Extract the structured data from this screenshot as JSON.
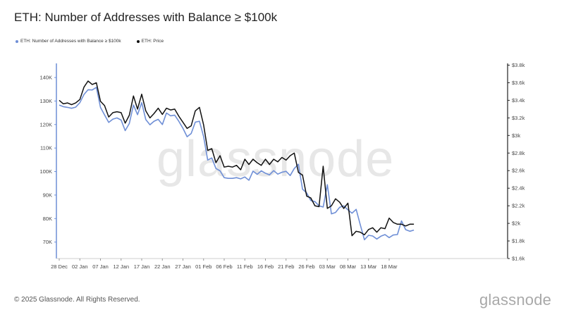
{
  "chart_data": {
    "type": "line",
    "title": "ETH: Number of Addresses with Balance ≥ $100k",
    "legend_placement": "top-left",
    "grid": false,
    "x_tick_labels": [
      "28 Dec",
      "02 Jan",
      "07 Jan",
      "12 Jan",
      "17 Jan",
      "22 Jan",
      "27 Jan",
      "01 Feb",
      "06 Feb",
      "11 Feb",
      "16 Feb",
      "21 Feb",
      "26 Feb",
      "03 Mar",
      "08 Mar",
      "13 Mar",
      "18 Mar"
    ],
    "y_left": {
      "ticks": [
        70000,
        80000,
        90000,
        100000,
        110000,
        120000,
        130000,
        140000
      ],
      "tick_labels": [
        "70K",
        "80K",
        "90K",
        "100K",
        "110K",
        "120K",
        "130K",
        "140K"
      ],
      "range": [
        63000,
        146000
      ]
    },
    "y_right": {
      "ticks": [
        1600,
        1800,
        2000,
        2200,
        2400,
        2600,
        2800,
        3000,
        3200,
        3400,
        3600,
        3800
      ],
      "tick_labels": [
        "$1.6k",
        "$1.8k",
        "$2k",
        "$2.2k",
        "$2.4k",
        "$2.6k",
        "$2.8k",
        "$3k",
        "$3.2k",
        "$3.4k",
        "$3.6k",
        "$3.8k"
      ],
      "range": [
        1600,
        3820
      ]
    },
    "series": [
      {
        "name": "ETH: Number of Addresses with Balance ≥ $100k",
        "axis": "left",
        "color": "#6f8fd6",
        "values": [
          128300,
          127600,
          127300,
          126900,
          127400,
          129300,
          132800,
          134800,
          134700,
          135800,
          127300,
          124100,
          120900,
          122300,
          122800,
          121900,
          117400,
          120400,
          128300,
          124200,
          129300,
          122100,
          119900,
          121400,
          122200,
          120000,
          124900,
          123700,
          124000,
          121400,
          118400,
          114800,
          116200,
          121000,
          121400,
          114900,
          104900,
          105800,
          101300,
          100300,
          97400,
          97100,
          97100,
          97400,
          96900,
          97700,
          96300,
          100200,
          98800,
          100300,
          99300,
          98600,
          100400,
          98900,
          99700,
          100100,
          98300,
          101300,
          103100,
          92500,
          90900,
          87700,
          87200,
          85400,
          84900,
          94400,
          82000,
          82600,
          84800,
          85400,
          83700,
          82300,
          83900,
          77400,
          71000,
          72900,
          72600,
          71300,
          72500,
          73200,
          71900,
          73000,
          73200,
          79000,
          75300,
          74600,
          75100
        ]
      },
      {
        "name": "ETH: Price",
        "axis": "right",
        "color": "#111111",
        "values": [
          3400,
          3360,
          3370,
          3350,
          3370,
          3410,
          3550,
          3620,
          3580,
          3600,
          3390,
          3340,
          3210,
          3260,
          3270,
          3260,
          3140,
          3230,
          3450,
          3300,
          3470,
          3280,
          3200,
          3250,
          3310,
          3240,
          3310,
          3290,
          3300,
          3220,
          3150,
          3080,
          3110,
          3280,
          3320,
          3120,
          2830,
          2850,
          2690,
          2770,
          2640,
          2650,
          2640,
          2660,
          2610,
          2730,
          2670,
          2730,
          2690,
          2660,
          2730,
          2670,
          2730,
          2700,
          2750,
          2720,
          2770,
          2800,
          2580,
          2550,
          2310,
          2290,
          2200,
          2190,
          2650,
          2170,
          2200,
          2280,
          2240,
          2170,
          2230,
          1860,
          1910,
          1900,
          1870,
          1930,
          1950,
          1900,
          1950,
          1940,
          2060,
          2010,
          1990,
          1990,
          1970,
          1990,
          1990
        ]
      }
    ]
  },
  "watermark_text": "glassnode",
  "footer": {
    "copyright": "© 2025 Glassnode. All Rights Reserved.",
    "logo_text": "glassnode"
  }
}
